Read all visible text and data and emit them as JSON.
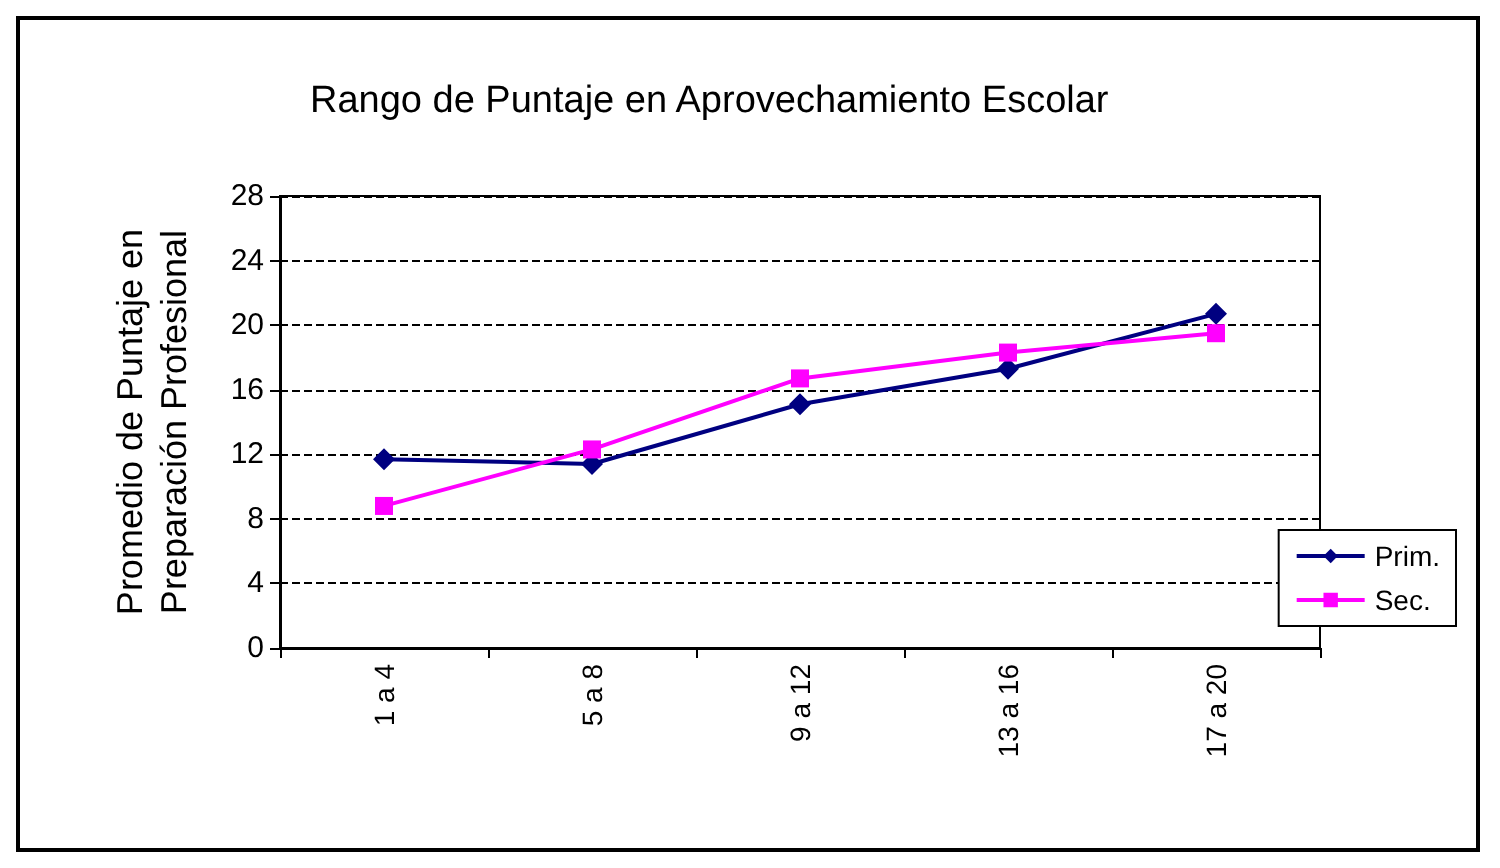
{
  "chart_data": {
    "type": "line",
    "title": "Rango de Puntaje en Aprovechamiento Escolar",
    "ylabel": "Promedio de Puntaje en\nPreparación Profesional",
    "categories": [
      "1 a 4",
      "5 a 8",
      "9 a 12",
      "13 a 16",
      "17 a 20"
    ],
    "series": [
      {
        "name": "Prim.",
        "color": "#000080",
        "values": [
          11.7,
          11.4,
          15.1,
          17.3,
          20.7
        ],
        "marker": "diamond"
      },
      {
        "name": "Sec.",
        "color": "#ff00ff",
        "values": [
          8.8,
          12.3,
          16.7,
          18.3,
          19.5
        ],
        "marker": "square"
      }
    ],
    "ylim": [
      0,
      28
    ],
    "yticks": [
      0,
      4,
      8,
      12,
      16,
      20,
      24,
      28
    ],
    "grid": "y",
    "legend": "right",
    "line_style": "solid"
  }
}
